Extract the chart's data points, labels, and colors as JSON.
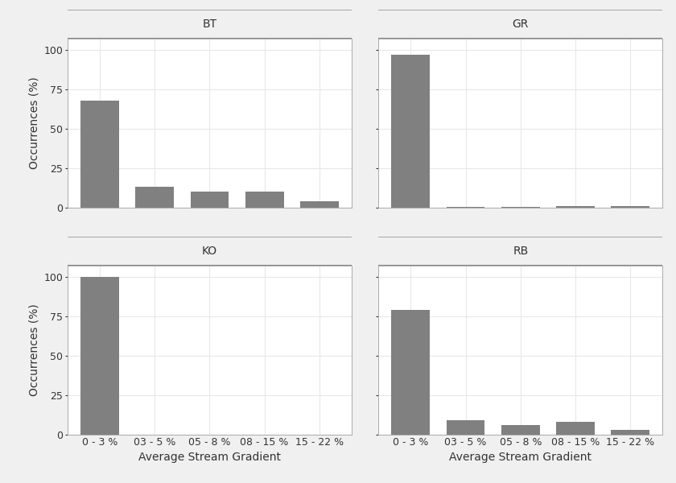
{
  "subplots": [
    {
      "title": "BT",
      "values": [
        68,
        13,
        10,
        10,
        4
      ]
    },
    {
      "title": "GR",
      "values": [
        97,
        0.5,
        0.5,
        0.8,
        0.8
      ]
    },
    {
      "title": "KO",
      "values": [
        100,
        0,
        0,
        0,
        0
      ]
    },
    {
      "title": "RB",
      "values": [
        79,
        9,
        6,
        8,
        3
      ]
    }
  ],
  "categories": [
    "0 - 3 %",
    "03 - 5 %",
    "05 - 8 %",
    "08 - 15 %",
    "15 - 22 %"
  ],
  "bar_color": "#808080",
  "ylim": [
    0,
    107
  ],
  "yticks": [
    0,
    25,
    50,
    75,
    100
  ],
  "ylabel": "Occurrences (%)",
  "xlabel": "Average Stream Gradient",
  "fig_background": "#f0f0f0",
  "panel_background": "#ffffff",
  "strip_color": "#dcdcdc",
  "strip_border": "#888888",
  "grid_color": "#e8e8e8",
  "title_fontsize": 10,
  "axis_fontsize": 10,
  "tick_fontsize": 9,
  "bar_width": 0.7
}
